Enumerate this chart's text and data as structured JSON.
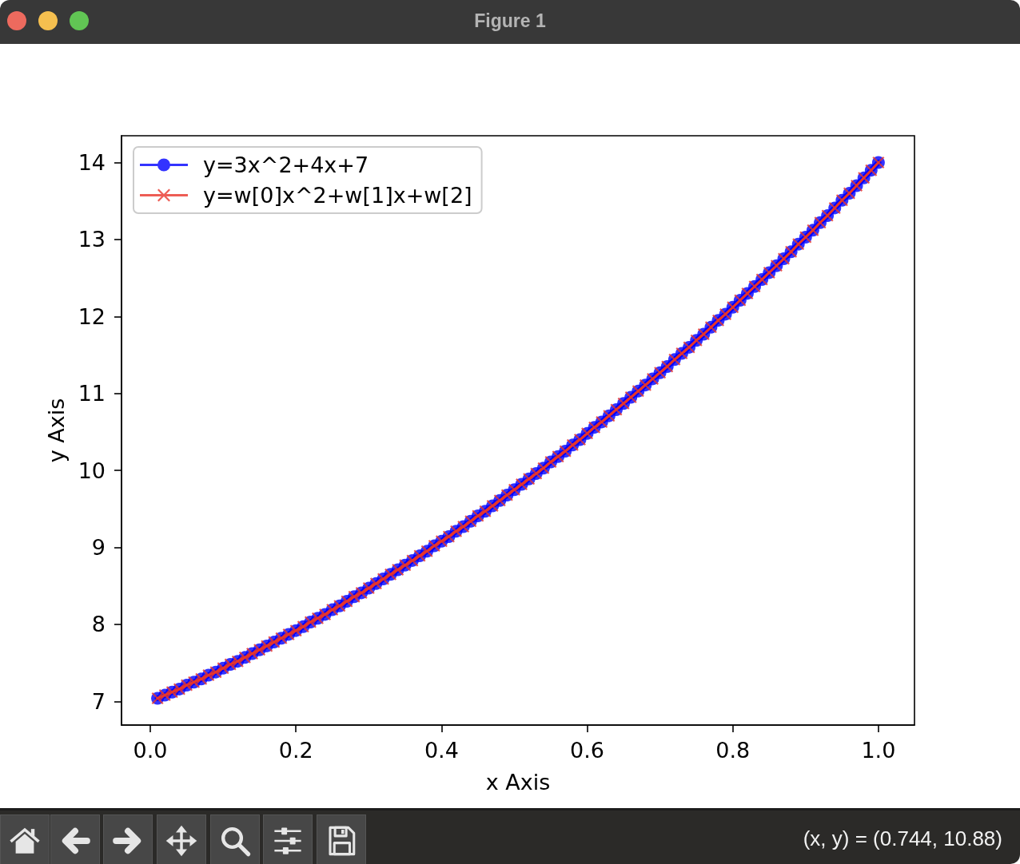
{
  "chart_data": {
    "type": "line",
    "title": "Figure 1",
    "xlabel": "x Axis",
    "ylabel": "y Axis",
    "annotations": [
      "(x, y) = (0.744, 10.88)"
    ],
    "legend": "top left",
    "xlim": [
      -0.0395,
      1.0495
    ],
    "ylim": [
      6.692,
      14.348
    ],
    "xticks": [
      {
        "value": 0,
        "label": "0.0"
      },
      0.2,
      0.4,
      0.6,
      0.8,
      {
        "value": 1,
        "label": "1.0"
      }
    ],
    "yticks": [
      7,
      8,
      9,
      10,
      11,
      12,
      13,
      14
    ],
    "x": [
      0.01,
      0.02,
      0.03,
      0.04,
      0.05,
      0.06,
      0.07,
      0.08,
      0.09,
      0.1,
      0.11,
      0.12,
      0.13,
      0.14,
      0.15,
      0.16,
      0.17,
      0.18,
      0.19,
      0.2,
      0.21,
      0.22,
      0.23,
      0.24,
      0.25,
      0.26,
      0.27,
      0.28,
      0.29,
      0.3,
      0.31,
      0.32,
      0.33,
      0.34,
      0.35,
      0.36,
      0.37,
      0.38,
      0.39,
      0.4,
      0.41,
      0.42,
      0.43,
      0.44,
      0.45,
      0.46,
      0.47,
      0.48,
      0.49,
      0.5,
      0.51,
      0.52,
      0.53,
      0.54,
      0.55,
      0.56,
      0.57,
      0.58,
      0.59,
      0.6,
      0.61,
      0.62,
      0.63,
      0.64,
      0.65,
      0.66,
      0.67,
      0.68,
      0.69,
      0.7,
      0.71,
      0.72,
      0.73,
      0.74,
      0.75,
      0.76,
      0.77,
      0.78,
      0.79,
      0.8,
      0.81,
      0.82,
      0.83,
      0.84,
      0.85,
      0.86,
      0.87,
      0.88,
      0.89,
      0.9,
      0.91,
      0.92,
      0.93,
      0.94,
      0.95,
      0.96,
      0.97,
      0.98,
      0.99,
      1.0
    ],
    "series": [
      {
        "name": "y=3x^2+4x+7",
        "color": "#0000ff",
        "marker": "circle",
        "values": [
          7.04,
          7.08,
          7.12,
          7.16,
          7.21,
          7.25,
          7.29,
          7.34,
          7.38,
          7.43,
          7.48,
          7.52,
          7.57,
          7.62,
          7.67,
          7.72,
          7.77,
          7.82,
          7.87,
          7.92,
          7.97,
          8.03,
          8.08,
          8.13,
          8.19,
          8.24,
          8.3,
          8.36,
          8.41,
          8.47,
          8.53,
          8.59,
          8.65,
          8.71,
          8.77,
          8.83,
          8.89,
          8.95,
          9.02,
          9.08,
          9.14,
          9.21,
          9.27,
          9.34,
          9.41,
          9.47,
          9.54,
          9.61,
          9.68,
          9.75,
          9.82,
          9.89,
          9.96,
          10.03,
          10.11,
          10.18,
          10.25,
          10.33,
          10.4,
          10.48,
          10.56,
          10.63,
          10.71,
          10.79,
          10.87,
          10.95,
          11.03,
          11.11,
          11.19,
          11.27,
          11.35,
          11.44,
          11.52,
          11.6,
          11.69,
          11.77,
          11.86,
          11.95,
          12.03,
          12.12,
          12.21,
          12.3,
          12.39,
          12.48,
          12.57,
          12.66,
          12.75,
          12.84,
          12.94,
          13.03,
          13.12,
          13.22,
          13.31,
          13.41,
          13.51,
          13.6,
          13.7,
          13.8,
          13.9,
          14.0
        ]
      },
      {
        "name": "y=w[0]x^2+w[1]x+w[2]",
        "color": "#e8352a",
        "marker": "cross",
        "values": [
          7.04,
          7.08,
          7.12,
          7.16,
          7.21,
          7.25,
          7.29,
          7.34,
          7.38,
          7.43,
          7.48,
          7.52,
          7.57,
          7.62,
          7.67,
          7.72,
          7.77,
          7.82,
          7.87,
          7.92,
          7.97,
          8.03,
          8.08,
          8.13,
          8.19,
          8.24,
          8.3,
          8.36,
          8.41,
          8.47,
          8.53,
          8.59,
          8.65,
          8.71,
          8.77,
          8.83,
          8.89,
          8.95,
          9.02,
          9.08,
          9.14,
          9.21,
          9.27,
          9.34,
          9.41,
          9.47,
          9.54,
          9.61,
          9.68,
          9.75,
          9.82,
          9.89,
          9.96,
          10.03,
          10.11,
          10.18,
          10.25,
          10.33,
          10.4,
          10.48,
          10.56,
          10.63,
          10.71,
          10.79,
          10.87,
          10.95,
          11.03,
          11.11,
          11.19,
          11.27,
          11.35,
          11.44,
          11.52,
          11.6,
          11.69,
          11.77,
          11.86,
          11.95,
          12.03,
          12.12,
          12.21,
          12.3,
          12.39,
          12.48,
          12.57,
          12.66,
          12.75,
          12.84,
          12.94,
          13.03,
          13.12,
          13.22,
          13.31,
          13.41,
          13.51,
          13.6,
          13.7,
          13.8,
          13.9,
          14.0
        ]
      }
    ]
  }
}
